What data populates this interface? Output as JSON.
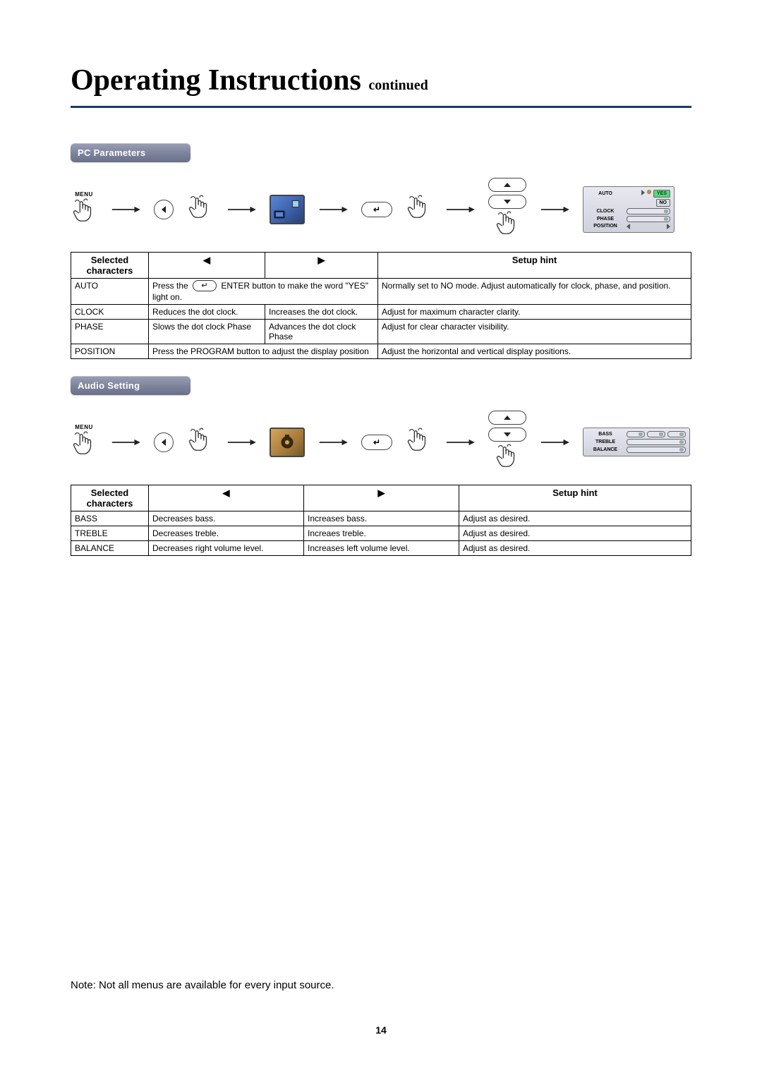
{
  "title": {
    "main": "Operating Instructions",
    "sub": "continued"
  },
  "sections": [
    {
      "chip": "PC Parameters",
      "flow_icon": "pc",
      "osd": {
        "rows": [
          {
            "label": "AUTO",
            "type": "yesno",
            "yes": "YES",
            "no": "NO"
          },
          {
            "label": "CLOCK",
            "type": "slider"
          },
          {
            "label": "PHASE",
            "type": "slider"
          },
          {
            "label": "POSITION",
            "type": "arrows"
          }
        ]
      },
      "table": {
        "headers": [
          "Selected characters",
          "◀",
          "▶",
          "Setup hint"
        ],
        "col_widths": [
          "110px",
          "165px",
          "160px",
          "auto"
        ],
        "rows": [
          {
            "c0": "AUTO",
            "c1_pre": "Press the ",
            "c1_has_enter": true,
            "c1_post": " light on.",
            "c1_span": 2,
            "c1_extra": " ENTER button to make the word \"YES\"",
            "c3": "Normally set to NO mode. Adjust automatically for clock, phase, and position."
          },
          {
            "c0": "CLOCK",
            "c1": "Reduces the dot clock.",
            "c2": "Increases the dot clock.",
            "c3": "Adjust for maximum character clarity."
          },
          {
            "c0": "PHASE",
            "c1": "Slows the dot clock Phase",
            "c2": "Advances the dot clock Phase",
            "c3": "Adjust for clear character visibility."
          },
          {
            "c0": "POSITION",
            "c1": "Press the PROGRAM button to adjust the display position",
            "c1_span": 2,
            "c3": "Adjust the horizontal and vertical display positions."
          }
        ]
      }
    },
    {
      "chip": "Audio Setting",
      "flow_icon": "audio",
      "osd": {
        "rows": [
          {
            "label": "BASS",
            "type": "slider3"
          },
          {
            "label": "TREBLE",
            "type": "slider"
          },
          {
            "label": "BALANCE",
            "type": "slider"
          }
        ]
      },
      "table": {
        "headers": [
          "Selected characters",
          "◀",
          "▶",
          "Setup hint"
        ],
        "col_widths": [
          "110px",
          "220px",
          "220px",
          "auto"
        ],
        "rows": [
          {
            "c0": "BASS",
            "c1": "Decreases bass.",
            "c2": "Increases bass.",
            "c3": "Adjust as desired."
          },
          {
            "c0": "TREBLE",
            "c1": "Decreases treble.",
            "c2": "Increaes treble.",
            "c3": "Adjust as desired."
          },
          {
            "c0": "BALANCE",
            "c1": "Decreases right volume level.",
            "c2": "Increases left volume level.",
            "c3": "Adjust as desired."
          }
        ]
      }
    }
  ],
  "note": "Note: Not all menus are available for every input source.",
  "page_number": "14",
  "menu_label": "MENU",
  "colors": {
    "title_rule": "#1a3a6a",
    "chip_bg_top": "#9a9fb5",
    "chip_bg_bot": "#6a7089"
  }
}
